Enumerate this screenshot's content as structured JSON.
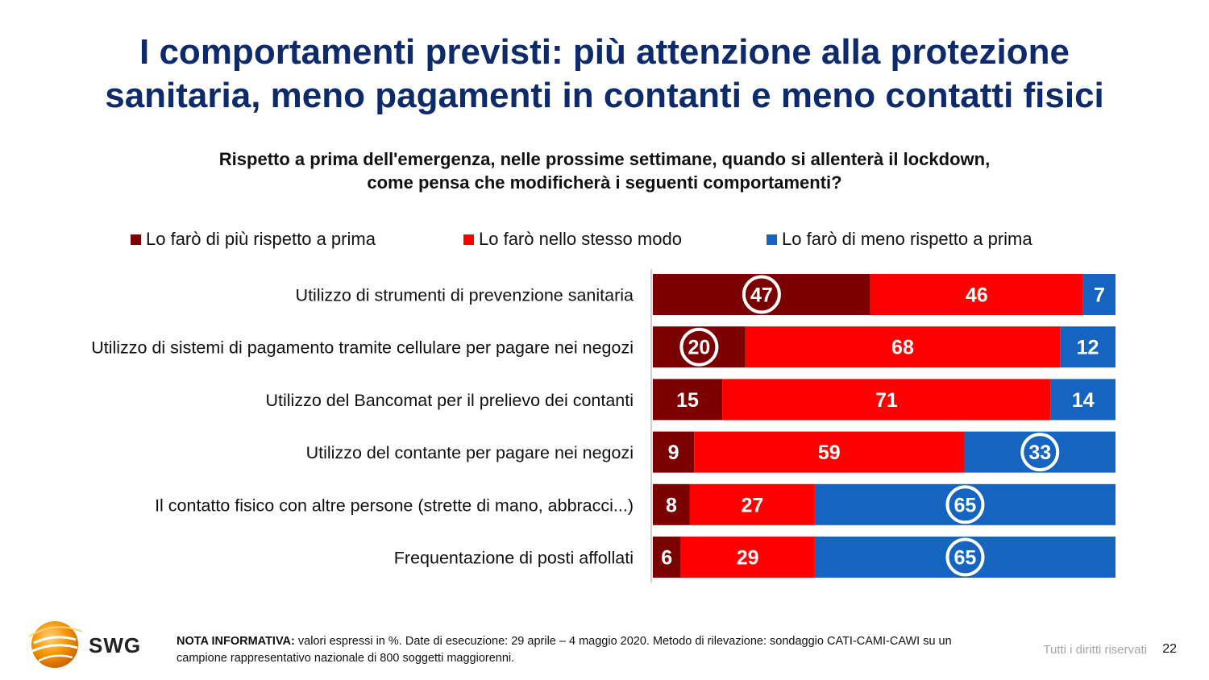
{
  "title_line1": "I comportamenti previsti: più attenzione alla protezione",
  "title_line2": "sanitaria, meno pagamenti in contanti e meno contatti fisici",
  "question_line1": "Rispetto a prima dell'emergenza, nelle prossime settimane, quando si allenterà il lockdown,",
  "question_line2": "come pensa che modificherà i seguenti comportamenti?",
  "colors": {
    "piu": "#7b0000",
    "stesso": "#ff0000",
    "meno": "#1565c0"
  },
  "chart_data": {
    "type": "bar",
    "orientation": "horizontal-stacked-100",
    "categories": [
      "Utilizzo di strumenti di prevenzione sanitaria",
      "Utilizzo di sistemi di pagamento tramite cellulare per pagare nei negozi",
      "Utilizzo del Bancomat per il prelievo dei contanti",
      "Utilizzo del contante per pagare nei negozi",
      "Il contatto fisico con altre persone (strette di mano, abbracci...)",
      "Frequentazione di posti affollati"
    ],
    "series": [
      {
        "name": "Lo farò di più rispetto a prima",
        "values": [
          47,
          20,
          15,
          9,
          8,
          6
        ]
      },
      {
        "name": "Lo farò nello stesso modo",
        "values": [
          46,
          68,
          71,
          59,
          27,
          29
        ]
      },
      {
        "name": "Lo farò di meno rispetto a prima",
        "values": [
          7,
          12,
          14,
          33,
          65,
          65
        ]
      }
    ],
    "highlighted": [
      {
        "category_index": 0,
        "series_index": 0
      },
      {
        "category_index": 1,
        "series_index": 0
      },
      {
        "category_index": 3,
        "series_index": 2
      },
      {
        "category_index": 4,
        "series_index": 2
      },
      {
        "category_index": 5,
        "series_index": 2
      }
    ],
    "legend_position": "top",
    "unit": "%"
  },
  "footer": {
    "note_label": "NOTA INFORMATIVA:",
    "note_text": " valori espressi in %. Date di esecuzione: 29 aprile – 4 maggio 2020. Metodo di rilevazione: sondaggio CATI-CAMI-CAWI su un campione rappresentativo nazionale di 800 soggetti maggiorenni.",
    "rights": "Tutti i diritti riservati",
    "page": "22",
    "logo_text": "SWG"
  }
}
